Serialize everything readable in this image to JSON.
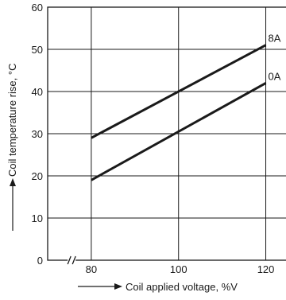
{
  "chart_data": {
    "type": "line",
    "xlabel": "Coil applied voltage, %V",
    "ylabel": "Coil temperature rise, °C",
    "xlim": [
      70,
      125
    ],
    "ylim": [
      0,
      60
    ],
    "x_ticks": [
      80,
      100,
      120
    ],
    "y_ticks": [
      0,
      10,
      20,
      30,
      40,
      50,
      60
    ],
    "x_axis_break": true,
    "grid": true,
    "series": [
      {
        "name": "8A",
        "x": [
          80,
          120
        ],
        "y": [
          29,
          51
        ]
      },
      {
        "name": "0A",
        "x": [
          80,
          120
        ],
        "y": [
          19,
          42
        ]
      }
    ]
  },
  "colors": {
    "line": "#1a1a1a",
    "background": "#ffffff"
  }
}
